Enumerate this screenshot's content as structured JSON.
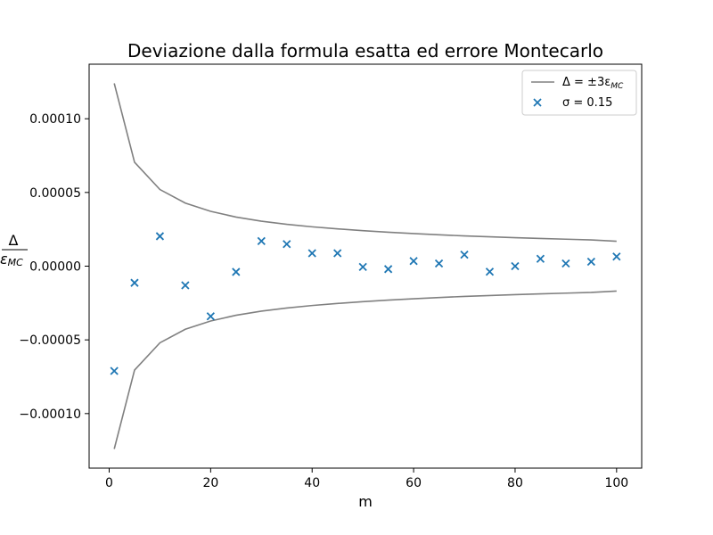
{
  "chart_data": {
    "type": "line",
    "title": "Deviazione dalla formula esatta ed errore Montecarlo",
    "xlabel": "m",
    "ylabel_num": "Δ",
    "ylabel_den": "ε",
    "ylabel_den_sub": "MC",
    "xlim": [
      -3.95,
      104.95
    ],
    "ylim": [
      -0.000137,
      0.000137
    ],
    "xticks": [
      0,
      20,
      40,
      60,
      80,
      100
    ],
    "xtick_labels": [
      "0",
      "20",
      "40",
      "60",
      "80",
      "100"
    ],
    "yticks": [
      -0.0001,
      -5e-05,
      0,
      5e-05,
      0.0001
    ],
    "ytick_labels": [
      "−0.00010",
      "−0.00005",
      "0.00000",
      "0.00005",
      "0.00010"
    ],
    "grid": false,
    "legend_position": "top-right",
    "x": [
      1,
      5,
      10,
      15,
      20,
      25,
      30,
      35,
      40,
      45,
      50,
      55,
      60,
      65,
      70,
      75,
      80,
      85,
      90,
      95,
      100
    ],
    "series": [
      {
        "name": "Δ = ±3ε_MC",
        "legend_parts": [
          "Δ = ±3ε",
          "MC"
        ],
        "kind": "line",
        "color": "#808080",
        "upper": [
          0.000124,
          7.05e-05,
          5.2e-05,
          4.28e-05,
          3.72e-05,
          3.33e-05,
          3.05e-05,
          2.84e-05,
          2.67e-05,
          2.53e-05,
          2.41e-05,
          2.3e-05,
          2.21e-05,
          2.13e-05,
          2.05e-05,
          1.99e-05,
          1.93e-05,
          1.88e-05,
          1.83e-05,
          1.78e-05,
          1.69e-05
        ],
        "lower": [
          -0.000124,
          -7.05e-05,
          -5.2e-05,
          -4.28e-05,
          -3.72e-05,
          -3.33e-05,
          -3.05e-05,
          -2.84e-05,
          -2.67e-05,
          -2.53e-05,
          -2.41e-05,
          -2.3e-05,
          -2.21e-05,
          -2.13e-05,
          -2.05e-05,
          -1.99e-05,
          -1.93e-05,
          -1.88e-05,
          -1.83e-05,
          -1.78e-05,
          -1.69e-05
        ]
      },
      {
        "name": "σ = 0.15",
        "kind": "scatter",
        "marker": "x",
        "color": "#1f77b4",
        "values": [
          -7.11e-05,
          -1.13e-05,
          2.03e-05,
          -1.3e-05,
          -3.4e-05,
          -3.9e-06,
          1.7e-05,
          1.5e-05,
          8.8e-06,
          8.8e-06,
          -5e-07,
          -2e-06,
          3.5e-06,
          1.8e-06,
          7.8e-06,
          -3.8e-06,
          0.0,
          5e-06,
          1.8e-06,
          3e-06,
          6.5e-06
        ]
      }
    ]
  }
}
